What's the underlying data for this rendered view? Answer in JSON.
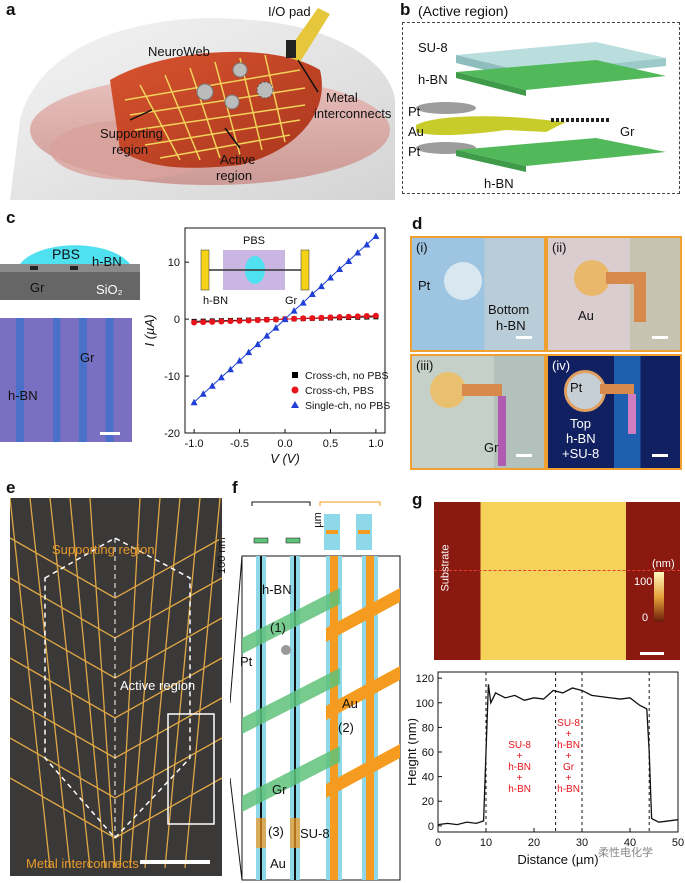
{
  "panels": {
    "a": {
      "label": "a",
      "io_pad": "I/O pad",
      "neuroweb": "NeuroWeb",
      "metal": "Metal",
      "interconnects": "interconnects",
      "supporting1": "Supporting",
      "supporting2": "region",
      "active1": "Active",
      "active2": "region"
    },
    "b": {
      "label": "b",
      "title": "(Active region)",
      "su8": "SU-8",
      "hbn_top": "h-BN",
      "pt_top": "Pt",
      "au": "Au",
      "gr": "Gr",
      "pt_bottom": "Pt",
      "hbn_bottom": "h-BN"
    },
    "c": {
      "label": "c",
      "pbs": "PBS",
      "hbn": "h-BN",
      "gr": "Gr",
      "sio2": "SiO₂",
      "micro_gr": "Gr",
      "micro_hbn": "h-BN",
      "inset_pbs": "PBS",
      "inset_hbn": "h-BN",
      "inset_gr": "Gr"
    },
    "d": {
      "label": "d",
      "i": "(i)",
      "ii": "(ii)",
      "iii": "(iii)",
      "iv": "(iv)",
      "pt1": "Pt",
      "bottom": "Bottom",
      "hbn1": "h-BN",
      "au": "Au",
      "gr": "Gr",
      "pt2": "Pt",
      "top": "Top",
      "hbn2": "h-BN",
      "su8": "+SU-8"
    },
    "e": {
      "label": "e",
      "supporting": "Supporting region",
      "active": "Active region",
      "metal": "Metal interconnects"
    },
    "f": {
      "label": "f",
      "nm": "100 nm",
      "um": "µm",
      "hbn": "h-BN",
      "one": "(1)",
      "pt": "Pt",
      "au1": "Au",
      "two": "(2)",
      "gr": "Gr",
      "three": "(3)",
      "su8": "SU-8",
      "au2": "Au"
    },
    "g": {
      "label": "g",
      "substrate": "Substrate",
      "cb_unit": "(nm)",
      "cb_100": "100",
      "cb_0": "0",
      "left_stack": [
        "SU-8",
        "+",
        "h-BN",
        "+",
        "h-BN"
      ],
      "right_stack": [
        "SU-8",
        "+",
        "h-BN",
        "+",
        "Gr",
        "+",
        "h-BN"
      ],
      "watermark": "柔性电化学"
    }
  },
  "colors": {
    "cross_no_pbs": "#000000",
    "cross_pbs": "#e8141b",
    "single_no_pbs": "#1f3fd6",
    "gold": "#e2a83a",
    "orange": "#f59b1f",
    "green": "#5fc27a",
    "cyan": "#8fd8ea",
    "annotation_red": "#e8141b"
  },
  "chart_data": [
    {
      "type": "scatter",
      "panel": "c",
      "xlabel": "V (V)",
      "ylabel": "I (µA)",
      "xlim": [
        -1.1,
        1.1
      ],
      "ylim": [
        -20,
        16
      ],
      "xticks": [
        "-1.0",
        "-0.5",
        "0.0",
        "0.5",
        "1.0"
      ],
      "yticks": [
        "-20",
        "-10",
        "0",
        "10"
      ],
      "legend_position": "bottom-right",
      "series": [
        {
          "name": "Cross-ch, no PBS",
          "marker": "square",
          "x": [
            -1.0,
            -0.9,
            -0.8,
            -0.7,
            -0.6,
            -0.5,
            -0.4,
            -0.3,
            -0.2,
            -0.1,
            0.0,
            0.1,
            0.2,
            0.3,
            0.4,
            0.5,
            0.6,
            0.7,
            0.8,
            0.9,
            1.0
          ],
          "y": [
            -0.4,
            -0.36,
            -0.32,
            -0.28,
            -0.24,
            -0.2,
            -0.16,
            -0.12,
            -0.08,
            -0.04,
            0.0,
            0.04,
            0.08,
            0.12,
            0.16,
            0.2,
            0.24,
            0.28,
            0.32,
            0.36,
            0.4
          ]
        },
        {
          "name": "Cross-ch, PBS",
          "marker": "circle",
          "x": [
            -1.0,
            -0.9,
            -0.8,
            -0.7,
            -0.6,
            -0.5,
            -0.4,
            -0.3,
            -0.2,
            -0.1,
            0.0,
            0.1,
            0.2,
            0.3,
            0.4,
            0.5,
            0.6,
            0.7,
            0.8,
            0.9,
            1.0
          ],
          "y": [
            -0.6,
            -0.54,
            -0.48,
            -0.42,
            -0.36,
            -0.3,
            -0.24,
            -0.18,
            -0.12,
            -0.06,
            0.0,
            0.06,
            0.12,
            0.18,
            0.24,
            0.3,
            0.36,
            0.42,
            0.48,
            0.54,
            0.6
          ]
        },
        {
          "name": "Single-ch, no PBS",
          "marker": "triangle",
          "x": [
            -1.0,
            -0.9,
            -0.8,
            -0.7,
            -0.6,
            -0.5,
            -0.4,
            -0.3,
            -0.2,
            -0.1,
            0.0,
            0.1,
            0.2,
            0.3,
            0.4,
            0.5,
            0.6,
            0.7,
            0.8,
            0.9,
            1.0
          ],
          "y": [
            -14.6,
            -13.1,
            -11.7,
            -10.2,
            -8.8,
            -7.3,
            -5.8,
            -4.4,
            -2.9,
            -1.5,
            0.0,
            1.5,
            2.9,
            4.4,
            5.8,
            7.3,
            8.8,
            10.2,
            11.7,
            13.1,
            14.6
          ]
        }
      ]
    },
    {
      "type": "line",
      "panel": "g",
      "xlabel": "Distance (µm)",
      "ylabel": "Height (nm)",
      "xlim": [
        0,
        50
      ],
      "ylim": [
        -5,
        125
      ],
      "xticks": [
        "0",
        "10",
        "20",
        "30",
        "40",
        "50"
      ],
      "yticks": [
        "0",
        "20",
        "40",
        "60",
        "80",
        "100",
        "120"
      ],
      "series": [
        {
          "x": [
            0,
            2,
            4,
            6,
            8,
            9.5,
            10,
            10.5,
            11,
            12,
            14,
            16,
            18,
            20,
            22,
            24,
            26,
            28,
            30,
            32,
            34,
            36,
            38,
            40,
            42,
            43.5,
            44,
            44.5,
            46,
            48,
            50
          ],
          "y": [
            1,
            2,
            1,
            3,
            2,
            4,
            60,
            115,
            100,
            108,
            104,
            106,
            102,
            104,
            103,
            110,
            108,
            112,
            110,
            106,
            105,
            104,
            103,
            104,
            98,
            95,
            60,
            6,
            3,
            4,
            5
          ]
        }
      ]
    }
  ]
}
